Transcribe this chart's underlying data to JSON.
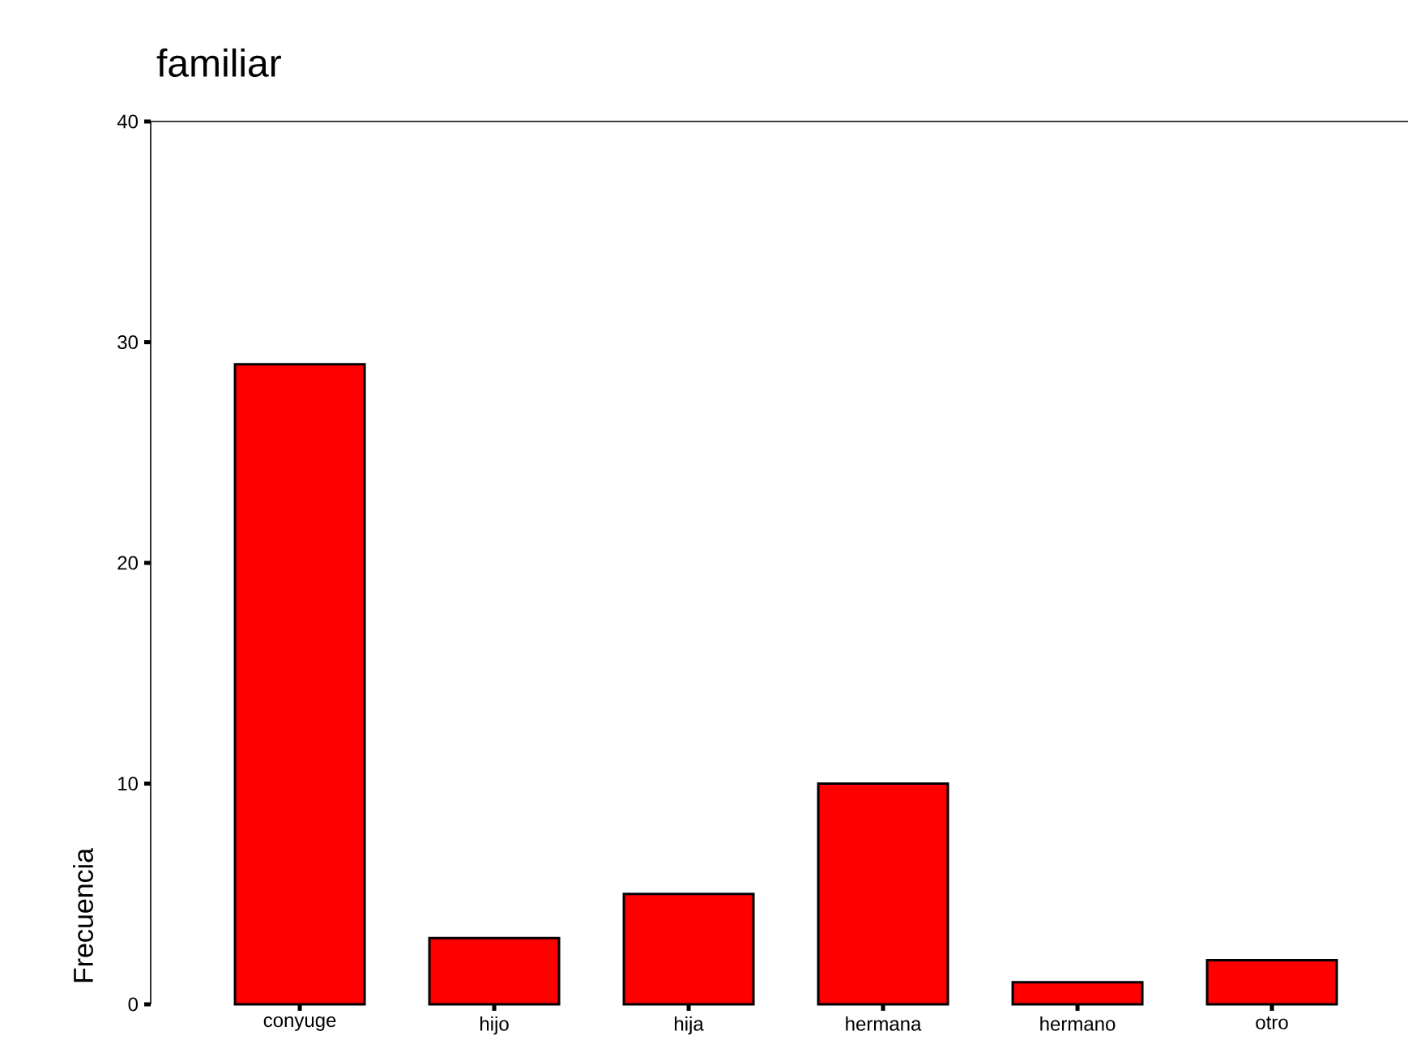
{
  "chart_data": {
    "type": "bar",
    "title": "familiar",
    "ylabel": "Frecuencia",
    "categories": [
      "conyuge",
      "hijo",
      "hija",
      "hermana",
      "hermano",
      "otro"
    ],
    "values": [
      29,
      3,
      5,
      10,
      1,
      2
    ],
    "color": "#ff0000",
    "ylim": [
      0,
      40
    ],
    "yticks": [
      0,
      10,
      20,
      30,
      40
    ]
  }
}
